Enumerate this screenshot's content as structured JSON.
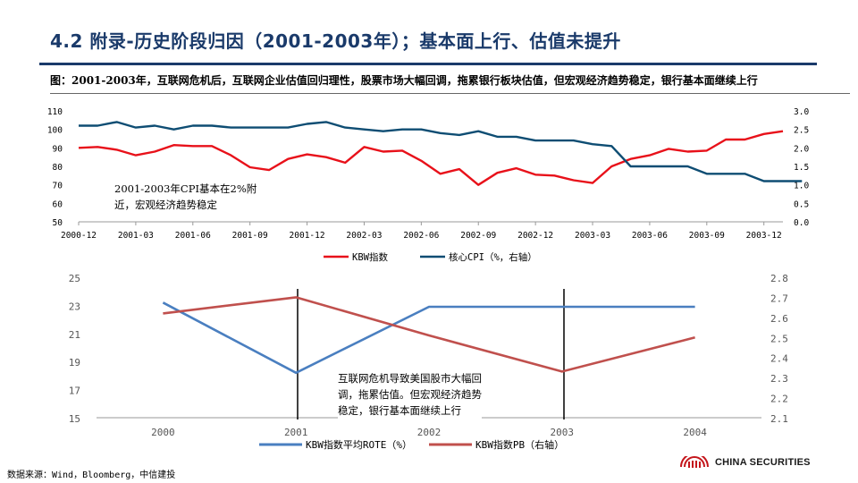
{
  "page": {
    "title": "4.2 附录-历史阶段归因（2001-2003年）；基本面上行、估值未提升",
    "figure_caption": "图：2001-2003年，互联网危机后，互联网企业估值回归理性，股票市场大幅回调，拖累银行板块估值，但宏观经济趋势稳定，银行基本面继续上行",
    "source": "数据来源：Wind，Bloomberg，中信建投",
    "logo_text": "CHINA SECURITIES"
  },
  "colors": {
    "red": "#e8111a",
    "navy": "#0e4d73",
    "blue": "#4a7fc0",
    "brown": "#c0504d",
    "title": "#1a3a6a"
  },
  "chart_data": [
    {
      "type": "line",
      "title": "",
      "annotation": [
        "2001-2003年CPI基本在2%附",
        "近，宏观经济趋势稳定"
      ],
      "x_ticks": [
        "2000-12",
        "2001-03",
        "2001-06",
        "2001-09",
        "2001-12",
        "2002-03",
        "2002-06",
        "2002-09",
        "2002-12",
        "2003-03",
        "2003-06",
        "2003-09",
        "2003-12"
      ],
      "ylim": [
        50,
        110
      ],
      "y_ticks": [
        "110",
        "100",
        "90",
        "80",
        "70",
        "60",
        "50"
      ],
      "y2lim": [
        0.0,
        3.0
      ],
      "y2_ticks": [
        "3.0",
        "2.5",
        "2.0",
        "1.5",
        "1.0",
        "0.5",
        "0.0"
      ],
      "series": [
        {
          "name": "KBW指数",
          "axis": "left",
          "color": "#e8111a",
          "values": [
            90,
            90.5,
            89,
            86,
            88,
            91.5,
            91,
            91,
            86,
            79.5,
            78,
            84,
            86.5,
            85,
            82,
            90.5,
            88,
            88.5,
            83,
            76,
            78.5,
            70,
            76.5,
            79,
            75.5,
            75,
            72.5,
            71,
            80,
            84,
            86,
            89.5,
            88,
            88.5,
            94.5,
            94.5,
            97.5,
            99
          ]
        },
        {
          "name": "核心CPI（%，右轴）",
          "axis": "right",
          "color": "#0e4d73",
          "values": [
            2.6,
            2.6,
            2.7,
            2.55,
            2.6,
            2.5,
            2.6,
            2.6,
            2.55,
            2.55,
            2.55,
            2.55,
            2.65,
            2.7,
            2.55,
            2.5,
            2.45,
            2.5,
            2.5,
            2.4,
            2.35,
            2.45,
            2.3,
            2.3,
            2.2,
            2.2,
            2.2,
            2.1,
            2.05,
            1.5,
            1.5,
            1.5,
            1.5,
            1.3,
            1.3,
            1.3,
            1.1,
            1.1,
            1.1
          ]
        }
      ]
    },
    {
      "type": "line",
      "categories": [
        "2000",
        "2001",
        "2002",
        "2003",
        "2004"
      ],
      "ylim": [
        15,
        25
      ],
      "y_ticks": [
        "25",
        "23",
        "21",
        "19",
        "17",
        "15"
      ],
      "y2lim": [
        2.1,
        2.8
      ],
      "y2_ticks": [
        "2.8",
        "2.7",
        "2.6",
        "2.5",
        "2.4",
        "2.3",
        "2.2",
        "2.1"
      ],
      "annotation": [
        "互联网危机导致美国股市大幅回",
        "调，拖累估值。但宏观经济趋势",
        "稳定，银行基本面继续上行"
      ],
      "series": [
        {
          "name": "KBW指数平均ROTE（%）",
          "axis": "left",
          "color": "#4a7fc0",
          "values": [
            23.2,
            18.2,
            22.9,
            22.9,
            22.9
          ]
        },
        {
          "name": "KBW指数PB（右轴）",
          "axis": "right",
          "color": "#c0504d",
          "values": [
            2.62,
            2.7,
            2.51,
            2.33,
            2.5
          ]
        }
      ]
    }
  ]
}
